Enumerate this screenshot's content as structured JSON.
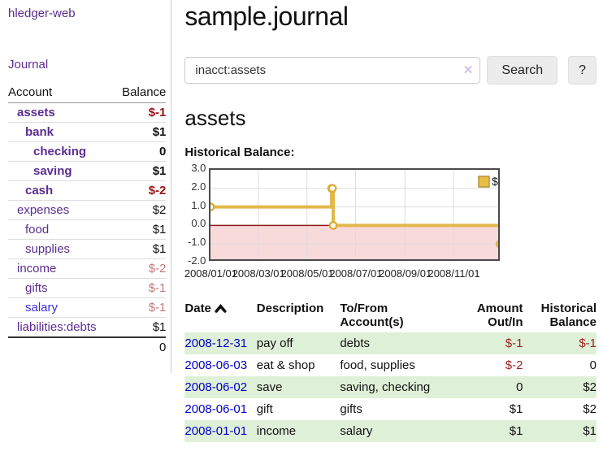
{
  "app": {
    "brand": "hledger-web",
    "nav_journal": "Journal"
  },
  "colors": {
    "accent_purple": "#5a2d91",
    "link_blue": "#0000cc",
    "salary_link_blue": "#3a2fd0",
    "negative_strong": "#9b1212",
    "negative_light": "#c47a7a",
    "negative_table": "#a02222",
    "row_stripe_green": "#dff0d8",
    "chart_line_gold": "#e2b84a",
    "chart_negative_band": "#f9dada",
    "chart_zero_line": "#8b1a1a"
  },
  "sidebar": {
    "headers": {
      "account": "Account",
      "balance": "Balance"
    },
    "accounts": [
      {
        "name": "assets",
        "balance": "$-1"
      },
      {
        "name": "bank",
        "balance": "$1"
      },
      {
        "name": "checking",
        "balance": "0"
      },
      {
        "name": "saving",
        "balance": "$1"
      },
      {
        "name": "cash",
        "balance": "$-2"
      },
      {
        "name": "expenses",
        "balance": "$2"
      },
      {
        "name": "food",
        "balance": "$1"
      },
      {
        "name": "supplies",
        "balance": "$1"
      },
      {
        "name": "income",
        "balance": "$-2"
      },
      {
        "name": "gifts",
        "balance": "$-1"
      },
      {
        "name": "salary",
        "balance": "$-1"
      },
      {
        "name": "liabilities:debts",
        "balance": "$1"
      }
    ],
    "total": "0"
  },
  "header": {
    "title": "sample.journal"
  },
  "search": {
    "value": "inacct:assets",
    "clear_icon": "✕",
    "search_button": "Search",
    "help_button": "?"
  },
  "account_page": {
    "title": "assets",
    "chart_label": "Historical Balance:"
  },
  "chart_data": {
    "type": "line",
    "title": "Historical Balance:",
    "series": [
      {
        "name": "$",
        "x": [
          "2008/01/01",
          "2008/06/01",
          "2008/06/02",
          "2008/06/03",
          "2008/12/31"
        ],
        "y": [
          1,
          2,
          2,
          0,
          -1
        ]
      }
    ],
    "step": "after",
    "xdomain": [
      "2008/01/01",
      "2008/12/31"
    ],
    "ylim": [
      -2,
      3
    ],
    "ytick_labels": [
      "3.0",
      "2.0",
      "1.0",
      "0.0",
      "-1.0",
      "-2.0"
    ],
    "yticks": [
      3,
      2,
      1,
      0,
      -1,
      -2
    ],
    "xtick_labels": [
      "2008/01/01",
      "2008/03/01",
      "2008/05/01",
      "2008/07/01",
      "2008/09/01",
      "2008/11/01"
    ],
    "legend": "$",
    "legend_position": "top-right",
    "grid": true,
    "negative_band": [
      -2,
      0
    ]
  },
  "register_table": {
    "headers": {
      "date": "Date",
      "description": "Description",
      "accounts": "To/From Account(s)",
      "amount": "Amount Out/In",
      "historical": "Historical Balance"
    },
    "sort_icon": "chevron-up",
    "rows": [
      {
        "date": "2008-12-31",
        "description": "pay off",
        "accounts": "debts",
        "amount": "$-1",
        "amount_negative": true,
        "historical": "$-1",
        "historical_negative": true
      },
      {
        "date": "2008-06-03",
        "description": "eat & shop",
        "accounts": "food, supplies",
        "amount": "$-2",
        "amount_negative": true,
        "historical": "0",
        "historical_negative": false
      },
      {
        "date": "2008-06-02",
        "description": "save",
        "accounts": "saving, checking",
        "amount": "0",
        "amount_negative": false,
        "historical": "$2",
        "historical_negative": false
      },
      {
        "date": "2008-06-01",
        "description": "gift",
        "accounts": "gifts",
        "amount": "$1",
        "amount_negative": false,
        "historical": "$2",
        "historical_negative": false
      },
      {
        "date": "2008-01-01",
        "description": "income",
        "accounts": "salary",
        "amount": "$1",
        "amount_negative": false,
        "historical": "$1",
        "historical_negative": false
      }
    ]
  }
}
